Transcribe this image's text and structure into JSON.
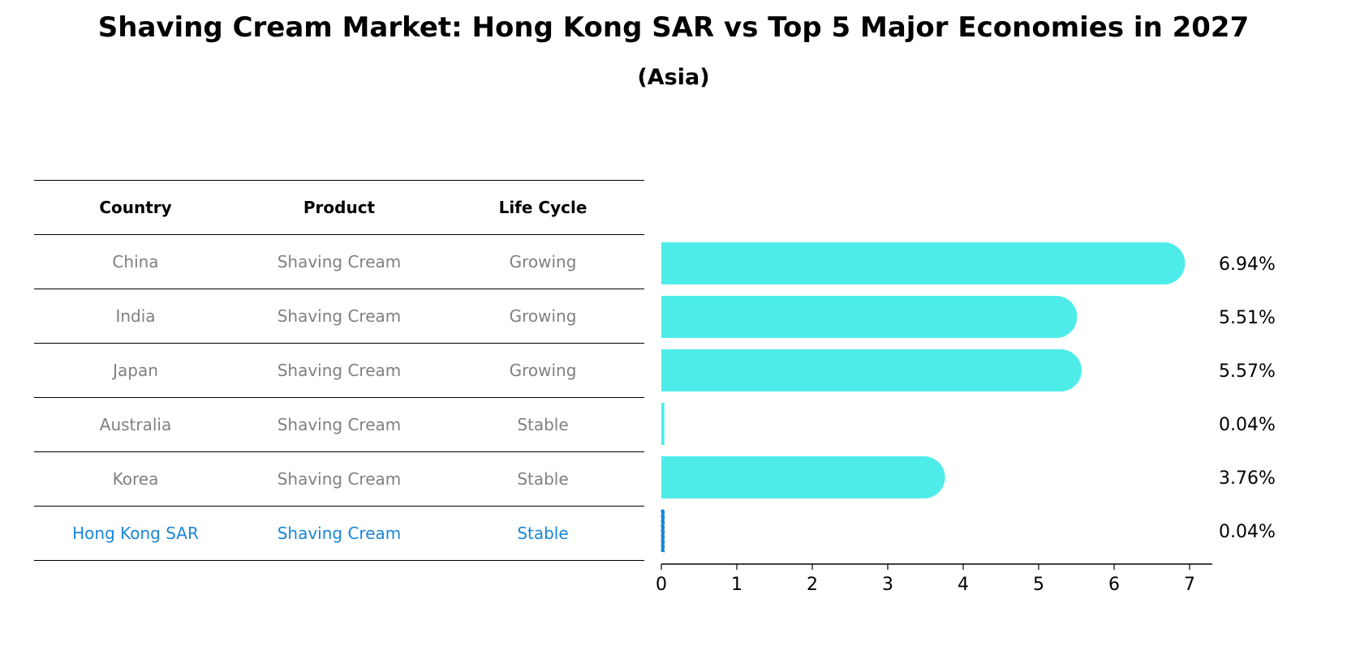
{
  "title": "Shaving Cream Market: Hong Kong SAR vs Top 5 Major Economies in 2027",
  "subtitle": "(Asia)",
  "table": {
    "headers": [
      "Country",
      "Product",
      "Life Cycle"
    ],
    "rows": [
      {
        "country": "China",
        "product": "Shaving Cream",
        "life_cycle": "Growing"
      },
      {
        "country": "India",
        "product": "Shaving Cream",
        "life_cycle": "Growing"
      },
      {
        "country": "Japan",
        "product": "Shaving Cream",
        "life_cycle": "Growing"
      },
      {
        "country": "Australia",
        "product": "Shaving Cream",
        "life_cycle": "Stable"
      },
      {
        "country": "Korea",
        "product": "Shaving Cream",
        "life_cycle": "Stable"
      },
      {
        "country": "Hong Kong SAR",
        "product": "Shaving Cream",
        "life_cycle": "Stable"
      }
    ]
  },
  "chart_data": {
    "type": "bar",
    "orientation": "horizontal",
    "categories": [
      "China",
      "India",
      "Japan",
      "Australia",
      "Korea",
      "Hong Kong SAR"
    ],
    "values": [
      6.94,
      5.51,
      5.57,
      0.04,
      3.76,
      0.04
    ],
    "value_labels": [
      "6.94%",
      "5.51%",
      "5.57%",
      "0.04%",
      "3.76%",
      "0.04%"
    ],
    "xlim": [
      0,
      7.3
    ],
    "xticks": [
      0,
      1,
      2,
      3,
      4,
      5,
      6,
      7
    ],
    "grid": false,
    "colors": {
      "bar": "#4eece9",
      "highlight": "#1a86d6"
    },
    "highlight_category": "Hong Kong SAR"
  }
}
